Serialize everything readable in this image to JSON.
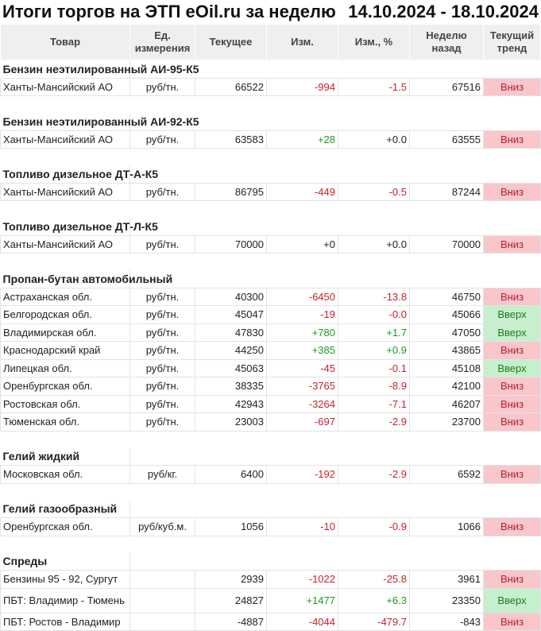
{
  "title": "Итоги торгов на ЭТП eOil.ru за неделю",
  "period": "14.10.2024 - 18.10.2024",
  "headers": [
    "Товар",
    "Ед. измерения",
    "Текущее",
    "Изм.",
    "Изм., %",
    "Неделю назад",
    "Текущий тренд"
  ],
  "colors": {
    "down_bg": "#f8c6cb",
    "up_bg": "#c6efce",
    "negative": "#c4232e",
    "positive": "#1e9a1e"
  },
  "sections": [
    {
      "name": "Бензин неэтилированный АИ-95-К5",
      "rows": [
        [
          "Ханты-Мансийский АО",
          "руб/тн.",
          "66522",
          "-994",
          "-1.5",
          "67516",
          "Вниз"
        ]
      ]
    },
    {
      "name": "Бензин неэтилированный АИ-92-К5",
      "rows": [
        [
          "Ханты-Мансийский АО",
          "руб/тн.",
          "63583",
          "+28",
          "+0.0",
          "63555",
          "Вниз"
        ]
      ]
    },
    {
      "name": "Топливо дизельное ДТ-А-К5",
      "rows": [
        [
          "Ханты-Мансийский АО",
          "руб/тн.",
          "86795",
          "-449",
          "-0.5",
          "87244",
          "Вниз"
        ]
      ]
    },
    {
      "name": "Топливо дизельное ДТ-Л-К5",
      "rows": [
        [
          "Ханты-Мансийский АО",
          "руб/тн.",
          "70000",
          "+0",
          "+0.0",
          "70000",
          "Вниз"
        ]
      ]
    },
    {
      "name": "Пропан-бутан автомобильный",
      "rows": [
        [
          "Астраханская обл.",
          "руб/тн.",
          "40300",
          "-6450",
          "-13.8",
          "46750",
          "Вниз"
        ],
        [
          "Белгородская обл.",
          "руб/тн.",
          "45047",
          "-19",
          "-0.0",
          "45066",
          "Вверх"
        ],
        [
          "Владимирская обл.",
          "руб/тн.",
          "47830",
          "+780",
          "+1.7",
          "47050",
          "Вверх"
        ],
        [
          "Краснодарский край",
          "руб/тн.",
          "44250",
          "+385",
          "+0.9",
          "43865",
          "Вниз"
        ],
        [
          "Липецкая обл.",
          "руб/тн.",
          "45063",
          "-45",
          "-0.1",
          "45108",
          "Вверх"
        ],
        [
          "Оренбургская обл.",
          "руб/тн.",
          "38335",
          "-3765",
          "-8.9",
          "42100",
          "Вниз"
        ],
        [
          "Ростовская обл.",
          "руб/тн.",
          "42943",
          "-3264",
          "-7.1",
          "46207",
          "Вниз"
        ],
        [
          "Тюменская обл.",
          "руб/тн.",
          "23003",
          "-697",
          "-2.9",
          "23700",
          "Вниз"
        ]
      ]
    },
    {
      "name": "Гелий жидкий",
      "rows": [
        [
          "Московская обл.",
          "руб/кг.",
          "6400",
          "-192",
          "-2.9",
          "6592",
          "Вниз"
        ]
      ]
    },
    {
      "name": "Гелий газообразный",
      "rows": [
        [
          "Оренбургская обл.",
          "руб/куб.м.",
          "1056",
          "-10",
          "-0.9",
          "1066",
          "Вниз"
        ]
      ]
    },
    {
      "name": "Спреды",
      "rows": [
        [
          "Бензины 95 - 92, Сургут",
          "",
          "2939",
          "-1022",
          "-25.8",
          "3961",
          "Вниз"
        ],
        [
          "ПБТ: Владимир - Тюмень",
          "",
          "24827",
          "+1477",
          "+6.3",
          "23350",
          "Вверх"
        ],
        [
          "ПБТ: Ростов - Владимир",
          "",
          "-4887",
          "-4044",
          "-479.7",
          "-843",
          "Вниз"
        ]
      ]
    }
  ]
}
